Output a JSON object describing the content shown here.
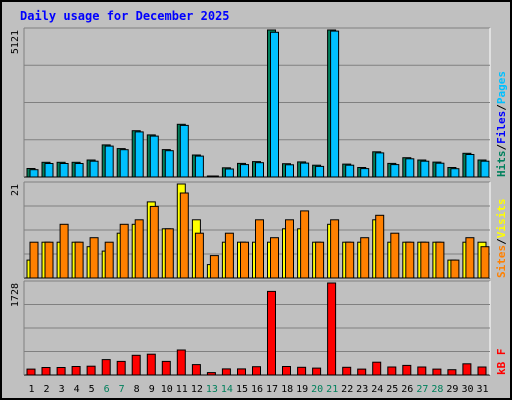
{
  "chart_data": {
    "type": "bar",
    "title": "Daily usage for December 2025",
    "categories": [
      "1",
      "2",
      "3",
      "4",
      "5",
      "6",
      "7",
      "8",
      "9",
      "10",
      "11",
      "12",
      "13",
      "14",
      "15",
      "16",
      "17",
      "18",
      "19",
      "20",
      "21",
      "22",
      "23",
      "24",
      "25",
      "26",
      "27",
      "28",
      "29",
      "30",
      "31"
    ],
    "weekend_days": [
      "6",
      "7",
      "13",
      "14",
      "20",
      "21",
      "27",
      "28"
    ],
    "colors": {
      "hits": "#00805c",
      "files": "#0000ff",
      "pages": "#00c0ff",
      "visits": "#ffff00",
      "sites": "#ff8000",
      "kbytes": "#ff0000",
      "title": "#0000ff",
      "weekday_label": "#000000",
      "weekend_label": "#00805c",
      "background": "#c0c0c0",
      "separator": "#808080"
    },
    "panels": [
      {
        "name": "hits-files-pages",
        "ymax_label": "5121",
        "ylim": [
          0,
          5121
        ],
        "legend": [
          {
            "text": "Hits",
            "color": "#00805c"
          },
          {
            "text": "/",
            "color": "#000000"
          },
          {
            "text": "Files",
            "color": "#0000ff"
          },
          {
            "text": "/",
            "color": "#000000"
          },
          {
            "text": "Pages",
            "color": "#00c0ff"
          }
        ],
        "series": [
          {
            "key": "hits",
            "color": "#00805c",
            "values": [
              296,
              512,
              512,
              512,
              592,
              1117,
              990,
              1612,
              1465,
              955,
              1836,
              767,
              35,
              320,
              473,
              538,
              5121,
              465,
              525,
              410,
              5121,
              450,
              332,
              879,
              473,
              674,
              592,
              520,
              330,
              824,
              592
            ]
          },
          {
            "key": "pages",
            "color": "#00c0ff",
            "values": [
              256,
              472,
              472,
              472,
              552,
              1077,
              950,
              1572,
              1425,
              915,
              1796,
              727,
              30,
              280,
              433,
              498,
              5041,
              425,
              485,
              370,
              5081,
              410,
              292,
              839,
              433,
              634,
              552,
              480,
              290,
              784,
              552
            ]
          }
        ]
      },
      {
        "name": "visits-sites",
        "ymax_label": "21",
        "ylim": [
          0,
          21
        ],
        "legend": [
          {
            "text": "Sites",
            "color": "#ff8000"
          },
          {
            "text": "/",
            "color": "#000000"
          },
          {
            "text": "Visits",
            "color": "#ffff00"
          }
        ],
        "series": [
          {
            "key": "visits",
            "color": "#ffff00",
            "values": [
              4,
              8,
              8,
              8,
              7,
              6,
              10,
              12,
              17,
              11,
              21,
              13,
              3,
              8,
              8,
              8,
              8,
              11,
              11,
              8,
              12,
              8,
              8,
              13,
              8,
              8,
              8,
              8,
              4,
              8,
              8
            ]
          },
          {
            "key": "sites",
            "color": "#ff8000",
            "values": [
              8,
              8,
              12,
              8,
              9,
              8,
              12,
              13,
              16,
              11,
              19,
              10,
              5,
              10,
              8,
              13,
              9,
              13,
              15,
              8,
              13,
              8,
              9,
              14,
              10,
              8,
              8,
              8,
              4,
              9,
              7
            ]
          }
        ]
      },
      {
        "name": "kbytes",
        "ymax_label": "1728",
        "ylim": [
          0,
          1728
        ],
        "legend": [
          {
            "text": "kB F",
            "color": "#ff0000"
          }
        ],
        "series": [
          {
            "key": "kbytes",
            "color": "#ff0000",
            "values": [
              110,
              140,
              140,
              160,
              165,
              290,
              255,
              370,
              390,
              255,
              470,
              195,
              45,
              115,
              115,
              155,
              1570,
              160,
              145,
              130,
              1728,
              145,
              110,
              240,
              150,
              180,
              150,
              110,
              100,
              210,
              150
            ]
          }
        ]
      }
    ]
  }
}
